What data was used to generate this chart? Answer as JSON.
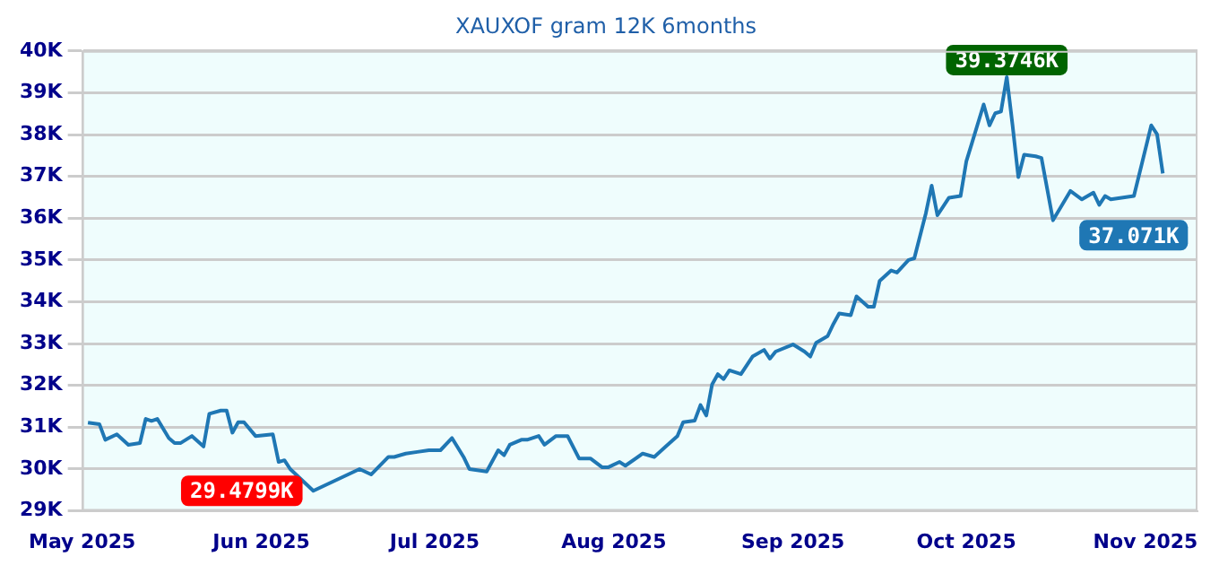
{
  "chart_data": {
    "type": "line",
    "title": "XAUXOF gram 12K 6months",
    "x": [
      "2025-05-02",
      "2025-05-04",
      "2025-05-05",
      "2025-05-07",
      "2025-05-09",
      "2025-05-11",
      "2025-05-12",
      "2025-05-13",
      "2025-05-14",
      "2025-05-16",
      "2025-05-17",
      "2025-05-18",
      "2025-05-20",
      "2025-05-22",
      "2025-05-23",
      "2025-05-25",
      "2025-05-26",
      "2025-05-27",
      "2025-05-28",
      "2025-05-29",
      "2025-05-31",
      "2025-06-03",
      "2025-06-04",
      "2025-06-05",
      "2025-06-06",
      "2025-06-10",
      "2025-06-18",
      "2025-06-20",
      "2025-06-23",
      "2025-06-24",
      "2025-06-26",
      "2025-06-28",
      "2025-06-30",
      "2025-07-02",
      "2025-07-04",
      "2025-07-06",
      "2025-07-07",
      "2025-07-10",
      "2025-07-12",
      "2025-07-13",
      "2025-07-14",
      "2025-07-16",
      "2025-07-17",
      "2025-07-19",
      "2025-07-20",
      "2025-07-22",
      "2025-07-24",
      "2025-07-26",
      "2025-07-28",
      "2025-07-30",
      "2025-07-31",
      "2025-08-02",
      "2025-08-03",
      "2025-08-06",
      "2025-08-08",
      "2025-08-10",
      "2025-08-12",
      "2025-08-13",
      "2025-08-15",
      "2025-08-16",
      "2025-08-17",
      "2025-08-18",
      "2025-08-19",
      "2025-08-20",
      "2025-08-21",
      "2025-08-23",
      "2025-08-25",
      "2025-08-27",
      "2025-08-28",
      "2025-08-29",
      "2025-09-01",
      "2025-09-03",
      "2025-09-04",
      "2025-09-05",
      "2025-09-07",
      "2025-09-08",
      "2025-09-09",
      "2025-09-11",
      "2025-09-12",
      "2025-09-14",
      "2025-09-15",
      "2025-09-16",
      "2025-09-18",
      "2025-09-19",
      "2025-09-21",
      "2025-09-22",
      "2025-09-24",
      "2025-09-25",
      "2025-09-26",
      "2025-09-28",
      "2025-09-30",
      "2025-10-01",
      "2025-10-02",
      "2025-10-04",
      "2025-10-05",
      "2025-10-06",
      "2025-10-07",
      "2025-10-08",
      "2025-10-09",
      "2025-10-10",
      "2025-10-11",
      "2025-10-13",
      "2025-10-14",
      "2025-10-16",
      "2025-10-19",
      "2025-10-21",
      "2025-10-23",
      "2025-10-24",
      "2025-10-25",
      "2025-10-26",
      "2025-10-30",
      "2025-11-02",
      "2025-11-03",
      "2025-11-04"
    ],
    "series": [
      {
        "color": "#1f77b4",
        "values": [
          31110,
          31070,
          30700,
          30830,
          30580,
          30620,
          31200,
          31150,
          31200,
          30740,
          30620,
          30620,
          30790,
          30540,
          31320,
          31400,
          31400,
          30870,
          31120,
          31120,
          30790,
          30830,
          30170,
          30210,
          30000,
          29479.9,
          30000,
          29870,
          30290,
          30290,
          30370,
          30410,
          30450,
          30450,
          30740,
          30290,
          30000,
          29940,
          30450,
          30330,
          30580,
          30700,
          30700,
          30790,
          30580,
          30790,
          30790,
          30250,
          30250,
          30040,
          30040,
          30170,
          30080,
          30370,
          30290,
          30540,
          30790,
          31120,
          31160,
          31530,
          31280,
          32020,
          32270,
          32150,
          32360,
          32270,
          32690,
          32850,
          32640,
          32810,
          32980,
          32810,
          32690,
          33020,
          33180,
          33470,
          33720,
          33680,
          34130,
          33880,
          33880,
          34500,
          34750,
          34700,
          35000,
          35040,
          36120,
          36780,
          36070,
          36490,
          36530,
          37360,
          37810,
          38720,
          38220,
          38510,
          38550,
          39374.6,
          38220,
          36980,
          37520,
          37480,
          37440,
          35950,
          36650,
          36450,
          36610,
          36320,
          36530,
          36450,
          36530,
          38220,
          38010,
          37071
        ]
      }
    ],
    "xlim": [
      "2025-05-01",
      "2025-11-10"
    ],
    "xticks": [
      {
        "value": "2025-05-01",
        "label": "May 2025"
      },
      {
        "value": "2025-06-01",
        "label": "Jun 2025"
      },
      {
        "value": "2025-07-01",
        "label": "Jul 2025"
      },
      {
        "value": "2025-08-01",
        "label": "Aug 2025"
      },
      {
        "value": "2025-09-01",
        "label": "Sep 2025"
      },
      {
        "value": "2025-10-01",
        "label": "Oct 2025"
      },
      {
        "value": "2025-11-01",
        "label": "Nov 2025"
      }
    ],
    "ylim": [
      29000,
      40000
    ],
    "yticks": [
      {
        "value": 29000,
        "label": "29K"
      },
      {
        "value": 30000,
        "label": "30K"
      },
      {
        "value": 31000,
        "label": "31K"
      },
      {
        "value": 32000,
        "label": "32K"
      },
      {
        "value": 33000,
        "label": "33K"
      },
      {
        "value": 34000,
        "label": "34K"
      },
      {
        "value": 35000,
        "label": "35K"
      },
      {
        "value": 36000,
        "label": "36K"
      },
      {
        "value": 37000,
        "label": "37K"
      },
      {
        "value": 38000,
        "label": "38K"
      },
      {
        "value": 39000,
        "label": "39K"
      },
      {
        "value": 40000,
        "label": "40K"
      }
    ],
    "grid": "y",
    "annotations": [
      {
        "text": "39.3746K",
        "x": "2025-10-08",
        "y": 39374.6
      },
      {
        "text": "29.4799K",
        "x": "2025-06-10",
        "y": 29479.9
      },
      {
        "text": "37.071K",
        "x": "2025-11-04",
        "y": 37071
      }
    ]
  }
}
